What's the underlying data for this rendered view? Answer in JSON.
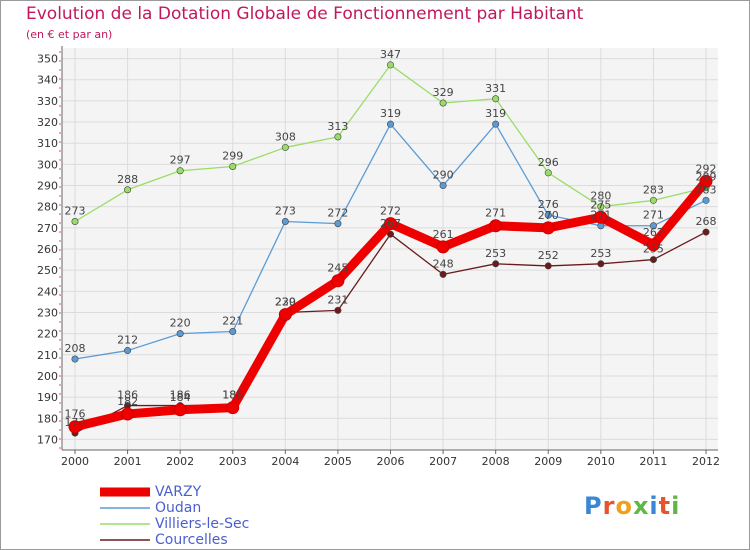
{
  "title": "Evolution de la Dotation Globale de Fonctionnement par Habitant",
  "subtitle": "(en € et par an)",
  "logo": "Proxiti",
  "colors": {
    "varzy": "#ee0000",
    "oudan": "#5b9bd5",
    "villiers": "#99dd66",
    "courcelles": "#6b1b1b",
    "title": "#c2185b",
    "legend_text": "#4a5fcf"
  },
  "chart_data": {
    "type": "line",
    "title": "Evolution de la Dotation Globale de Fonctionnement par Habitant",
    "ylabel": "(en € et par an)",
    "x": [
      "2000",
      "2001",
      "2002",
      "2003",
      "2004",
      "2005",
      "2006",
      "2007",
      "2008",
      "2009",
      "2010",
      "2011",
      "2012"
    ],
    "ylim": [
      165,
      355
    ],
    "yticks": [
      170,
      180,
      190,
      200,
      210,
      220,
      230,
      240,
      250,
      260,
      270,
      280,
      290,
      300,
      310,
      320,
      330,
      340,
      350
    ],
    "grid": true,
    "legend_position": "bottom-left",
    "series": [
      {
        "name": "VARZY",
        "values": [
          176,
          182,
          184,
          185,
          229,
          245,
          272,
          261,
          271,
          270,
          275,
          262,
          292
        ]
      },
      {
        "name": "Oudan",
        "values": [
          208,
          212,
          220,
          221,
          273,
          272,
          319,
          290,
          319,
          276,
          271,
          271,
          283
        ]
      },
      {
        "name": "Villiers-le-Sec",
        "values": [
          273,
          288,
          297,
          299,
          308,
          313,
          347,
          329,
          331,
          296,
          280,
          283,
          289
        ]
      },
      {
        "name": "Courcelles",
        "values": [
          173,
          186,
          186,
          186,
          230,
          231,
          267,
          248,
          253,
          252,
          253,
          255,
          268
        ]
      }
    ]
  }
}
